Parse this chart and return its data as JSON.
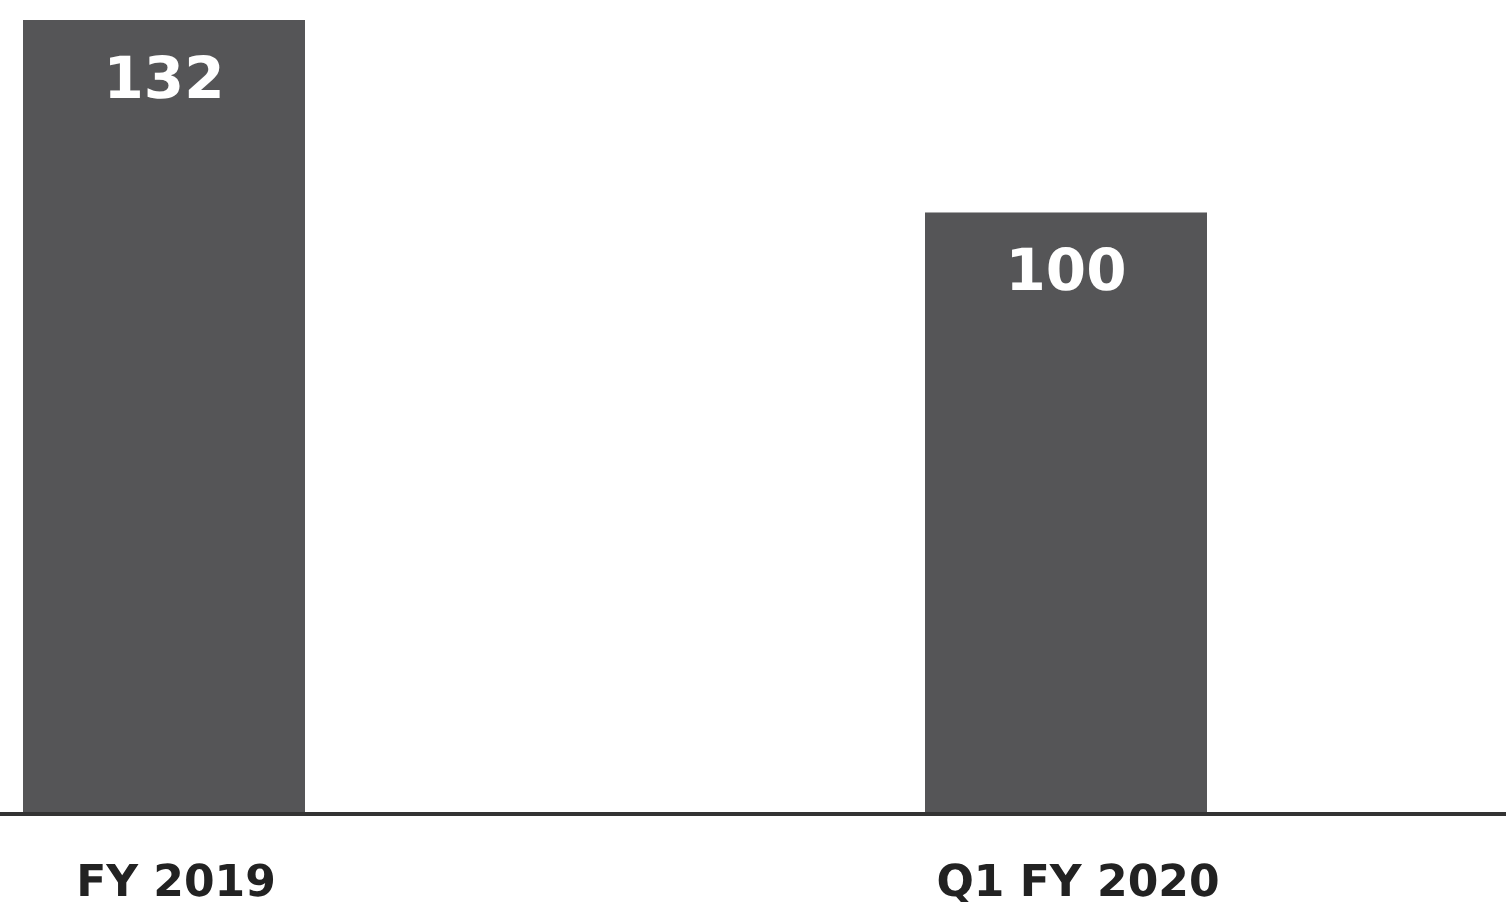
{
  "chart_data": {
    "type": "bar",
    "categories": [
      "FY 2019",
      "Q1 FY 2020"
    ],
    "values": [
      132,
      100
    ],
    "color": "#555557",
    "data_labels": true
  }
}
